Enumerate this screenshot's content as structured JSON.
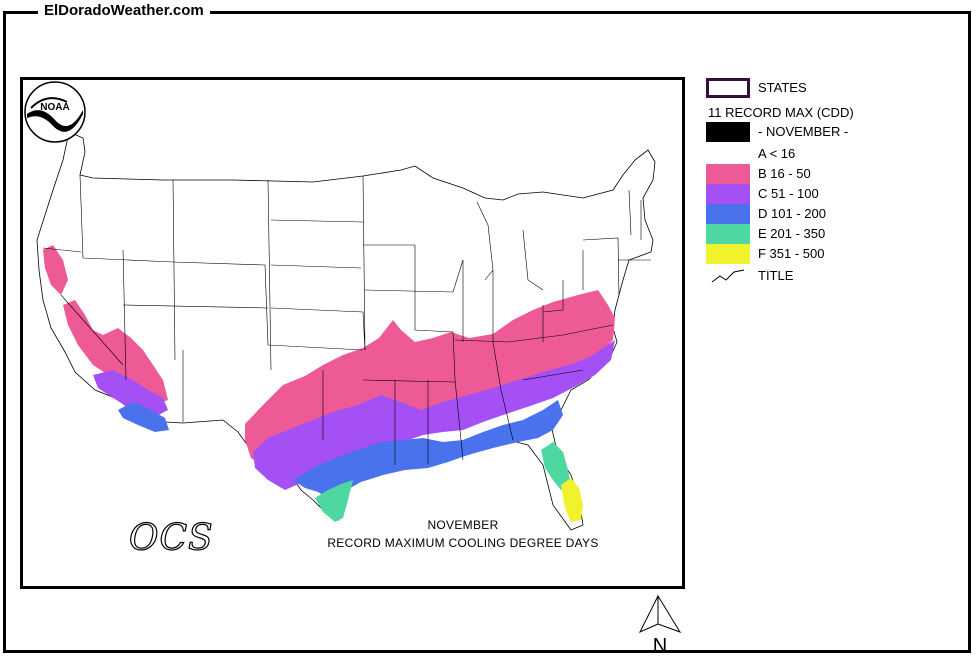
{
  "site": {
    "title": "ElDoradoWeather.com"
  },
  "map": {
    "caption_month": "NOVEMBER",
    "caption_title": "RECORD MAXIMUM COOLING DEGREE DAYS",
    "logos": {
      "noaa": "NOAA",
      "ocs": "OCS"
    }
  },
  "legend": {
    "states_label": "STATES",
    "variable_label": "11 RECORD MAX (CDD)",
    "month_label": "- NOVEMBER -",
    "title_label": "TITLE",
    "classes": [
      {
        "label": "A < 16",
        "color": "#ffffff"
      },
      {
        "label": "B 16 - 50",
        "color": "#ee5a96"
      },
      {
        "label": "C 51 - 100",
        "color": "#a450f5"
      },
      {
        "label": "D 101 - 200",
        "color": "#4a72ec"
      },
      {
        "label": "E 201 - 350",
        "color": "#4ed8a0"
      },
      {
        "label": "F 351 - 500",
        "color": "#f2f22c"
      }
    ]
  },
  "compass": {
    "label": "N"
  }
}
